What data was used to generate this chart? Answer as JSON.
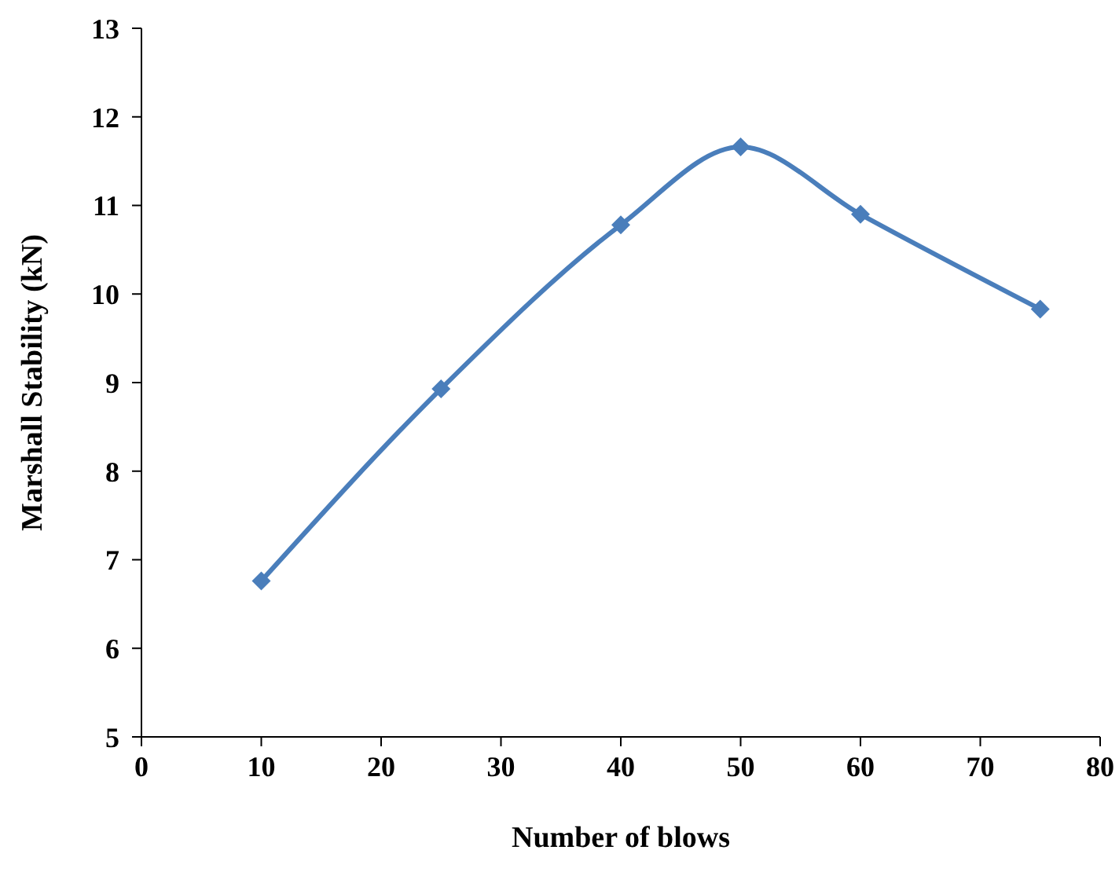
{
  "chart_data": {
    "type": "line",
    "xlabel": "Number of blows",
    "ylabel": "Marshall Stability (kN)",
    "x": [
      10,
      25,
      40,
      50,
      60,
      75
    ],
    "series": [
      {
        "color": "#4a7ebb",
        "values": [
          6.76,
          8.93,
          10.78,
          11.66,
          10.9,
          9.83
        ]
      }
    ],
    "xlim": [
      0,
      80
    ],
    "xticks": [
      0,
      10,
      20,
      30,
      40,
      50,
      60,
      70,
      80
    ],
    "ylim": [
      5,
      13
    ],
    "yticks": [
      5,
      6,
      7,
      8,
      9,
      10,
      11,
      12,
      13
    ],
    "grid": false,
    "legend": false,
    "marker": "diamond",
    "line_style": "solid"
  }
}
